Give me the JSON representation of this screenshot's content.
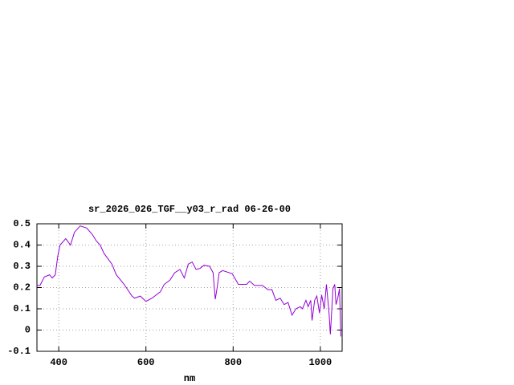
{
  "chart_data": {
    "type": "line",
    "title": "sr_2026_026_TGF__y03_r_rad 06-26-00",
    "x_label": "nm",
    "x": [
      350,
      357,
      367,
      379,
      385,
      392,
      398,
      403,
      416,
      427,
      436,
      449,
      464,
      477,
      486,
      495,
      504,
      522,
      532,
      550,
      568,
      574,
      587,
      600,
      614,
      633,
      642,
      655,
      666,
      678,
      688,
      697,
      706,
      715,
      724,
      733,
      746,
      754,
      759,
      763,
      768,
      776,
      798,
      812,
      831,
      838,
      849,
      867,
      880,
      889,
      898,
      908,
      917,
      926,
      935,
      944,
      954,
      959,
      967,
      972,
      978,
      981,
      987,
      992,
      998,
      1003,
      1009,
      1014,
      1020,
      1023,
      1029,
      1033,
      1036,
      1040,
      1044,
      1047
    ],
    "series": [
      {
        "color": "#9400d3",
        "values": [
          0.21,
          0.21,
          0.25,
          0.26,
          0.245,
          0.26,
          0.35,
          0.4,
          0.43,
          0.4,
          0.46,
          0.49,
          0.48,
          0.45,
          0.42,
          0.4,
          0.36,
          0.31,
          0.26,
          0.215,
          0.16,
          0.15,
          0.16,
          0.135,
          0.15,
          0.18,
          0.215,
          0.235,
          0.27,
          0.285,
          0.245,
          0.31,
          0.32,
          0.285,
          0.29,
          0.305,
          0.3,
          0.27,
          0.145,
          0.195,
          0.27,
          0.28,
          0.265,
          0.215,
          0.215,
          0.23,
          0.21,
          0.21,
          0.19,
          0.19,
          0.14,
          0.15,
          0.12,
          0.13,
          0.07,
          0.1,
          0.11,
          0.1,
          0.14,
          0.11,
          0.14,
          0.045,
          0.14,
          0.16,
          0.08,
          0.165,
          0.1,
          0.215,
          0.08,
          -0.02,
          0.195,
          0.215,
          0.12,
          0.15,
          0.195,
          -0.03
        ]
      }
    ],
    "xlim": [
      350,
      1050
    ],
    "xticks": [
      400,
      600,
      800,
      1000
    ],
    "ylim": [
      -0.1,
      0.5
    ],
    "yticks": [
      -0.1,
      0,
      0.1,
      0.2,
      0.3,
      0.4,
      0.5
    ],
    "grid": true
  }
}
